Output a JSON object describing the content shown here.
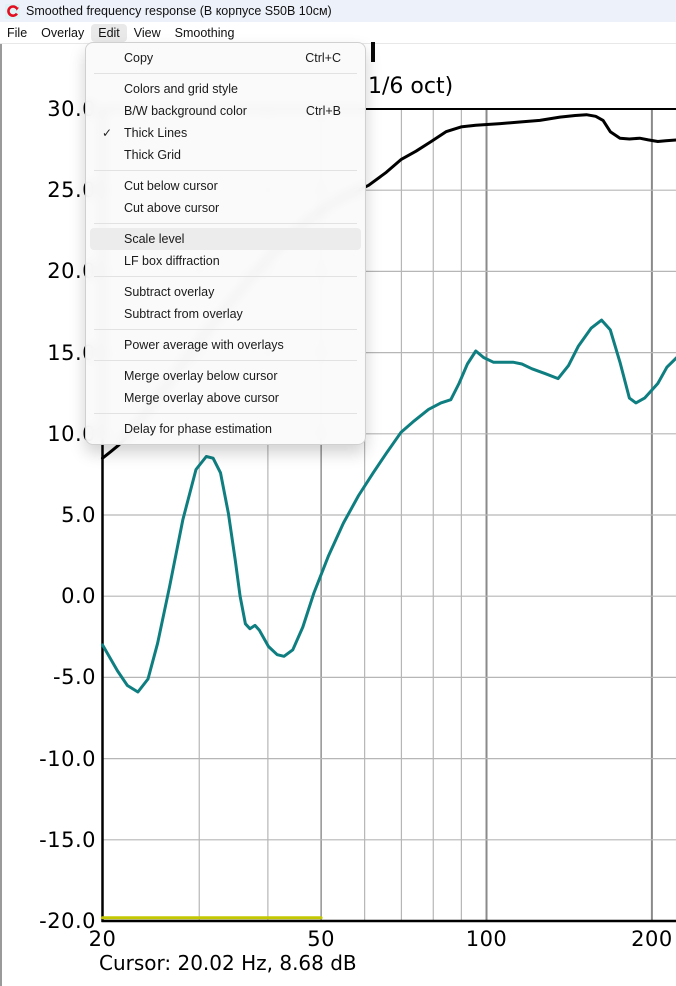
{
  "window": {
    "title": "Smoothed frequency response (В корпусе S50В 10см)",
    "icon": "arta-red-c-arrow"
  },
  "menu_bar": {
    "items": [
      "File",
      "Overlay",
      "Edit",
      "View",
      "Smoothing"
    ],
    "active_item": "Edit"
  },
  "edit_menu": {
    "groups": [
      [
        {
          "label": "Copy",
          "shortcut": "Ctrl+C"
        }
      ],
      [
        {
          "label": "Colors and grid style"
        },
        {
          "label": "B/W background color",
          "shortcut": "Ctrl+B"
        },
        {
          "label": "Thick Lines",
          "checked": true
        },
        {
          "label": "Thick Grid"
        }
      ],
      [
        {
          "label": "Cut below cursor"
        },
        {
          "label": "Cut above cursor"
        }
      ],
      [
        {
          "label": "Scale level",
          "highlighted": true
        },
        {
          "label": "LF box  diffraction"
        }
      ],
      [
        {
          "label": "Subtract overlay"
        },
        {
          "label": "Subtract from overlay"
        }
      ],
      [
        {
          "label": "Power average with overlays"
        }
      ],
      [
        {
          "label": "Merge overlay below cursor"
        },
        {
          "label": "Merge overlay above cursor"
        }
      ],
      [
        {
          "label": "Delay for phase estimation"
        }
      ]
    ],
    "checkmark_glyph": "✓"
  },
  "status": {
    "cursor_text": "Cursor: 20.02 Hz, 8.68 dB"
  },
  "colors": {
    "teal_curve": "#0e7e80",
    "black_curve": "#000000",
    "yellow_curve": "#c4c800",
    "grid_minor": "#b6b6b6",
    "grid_major": "#8a8a8a",
    "axis_border": "#000000",
    "titlebar_bg": "#edf1fa"
  },
  "chart_data": {
    "type": "line",
    "title_fragment": "1/6 oct)",
    "x_scale": "log",
    "x_unit": "Hz",
    "y_unit": "dB",
    "xlim": [
      20,
      222
    ],
    "ylim": [
      -20,
      30
    ],
    "grid": true,
    "cursor": {
      "freq_hz": 20.02,
      "level_db": 8.68
    },
    "x_ticks": [
      {
        "f": 20,
        "label": "20"
      },
      {
        "f": 50,
        "label": "50"
      },
      {
        "f": 100,
        "label": "100"
      },
      {
        "f": 200,
        "label": "200"
      }
    ],
    "x_grid_minor": [
      30,
      40,
      60,
      70,
      80,
      90
    ],
    "x_grid_major": [
      50,
      100,
      200
    ],
    "y_ticks": [
      {
        "db": 30,
        "label": "30.0"
      },
      {
        "db": 25,
        "label": "25.0"
      },
      {
        "db": 20,
        "label": "20.0"
      },
      {
        "db": 15,
        "label": "15.0"
      },
      {
        "db": 10,
        "label": "10.0"
      },
      {
        "db": 5,
        "label": "5.0"
      },
      {
        "db": 0,
        "label": "0.0"
      },
      {
        "db": -5,
        "label": "-5.0"
      },
      {
        "db": -10,
        "label": "-10.0"
      },
      {
        "db": -15,
        "label": "-15.0"
      },
      {
        "db": -20,
        "label": "-20.0"
      }
    ],
    "series": [
      {
        "name": "upper-response-black",
        "color": "#000000",
        "width": 3,
        "points": [
          [
            20,
            8.5
          ],
          [
            20.7,
            8.9
          ],
          [
            21.4,
            9.3
          ],
          [
            22,
            9.7
          ],
          [
            23.5,
            10.9
          ],
          [
            25,
            12.1
          ],
          [
            27,
            13.6
          ],
          [
            29,
            15.0
          ],
          [
            31.5,
            16.6
          ],
          [
            34,
            18.0
          ],
          [
            37,
            19.5
          ],
          [
            40,
            20.8
          ],
          [
            44,
            22.2
          ],
          [
            48,
            23.3
          ],
          [
            52,
            24.1
          ],
          [
            56,
            24.7
          ],
          [
            61,
            25.3
          ],
          [
            65.7,
            26.1
          ],
          [
            70,
            26.9
          ],
          [
            74.4,
            27.4
          ],
          [
            79.3,
            28.0
          ],
          [
            84.4,
            28.6
          ],
          [
            89.9,
            28.9
          ],
          [
            95.6,
            29.0
          ],
          [
            106,
            29.1
          ],
          [
            115,
            29.2
          ],
          [
            125,
            29.3
          ],
          [
            136,
            29.5
          ],
          [
            145,
            29.6
          ],
          [
            152,
            29.65
          ],
          [
            158,
            29.55
          ],
          [
            163,
            29.3
          ],
          [
            168,
            28.6
          ],
          [
            175,
            28.2
          ],
          [
            182,
            28.15
          ],
          [
            190,
            28.2
          ],
          [
            197,
            28.1
          ],
          [
            205,
            28.0
          ],
          [
            212,
            28.05
          ],
          [
            222,
            28.1
          ]
        ]
      },
      {
        "name": "lower-response-teal",
        "color": "#0e7e80",
        "width": 3,
        "points": [
          [
            20,
            -3.0
          ],
          [
            20.4,
            -3.5
          ],
          [
            21.3,
            -4.6
          ],
          [
            22.2,
            -5.5
          ],
          [
            23.2,
            -5.9
          ],
          [
            24.2,
            -5.1
          ],
          [
            25.2,
            -2.9
          ],
          [
            26.5,
            0.6
          ],
          [
            28,
            4.7
          ],
          [
            29.6,
            7.8
          ],
          [
            30.9,
            8.6
          ],
          [
            31.8,
            8.5
          ],
          [
            32.8,
            7.6
          ],
          [
            33.9,
            5.1
          ],
          [
            34.9,
            2.2
          ],
          [
            35.6,
            0.0
          ],
          [
            36.4,
            -1.7
          ],
          [
            37.1,
            -2.0
          ],
          [
            37.9,
            -1.8
          ],
          [
            38.6,
            -2.1
          ],
          [
            40.1,
            -3.1
          ],
          [
            41.6,
            -3.6
          ],
          [
            42.8,
            -3.7
          ],
          [
            44.4,
            -3.3
          ],
          [
            46.3,
            -1.9
          ],
          [
            48.5,
            0.2
          ],
          [
            51.6,
            2.5
          ],
          [
            54.9,
            4.5
          ],
          [
            58.5,
            6.2
          ],
          [
            62.2,
            7.6
          ],
          [
            65.7,
            8.8
          ],
          [
            69.9,
            10.1
          ],
          [
            73.9,
            10.8
          ],
          [
            78.4,
            11.5
          ],
          [
            82.6,
            11.9
          ],
          [
            86.1,
            12.1
          ],
          [
            89.1,
            13.1
          ],
          [
            92.3,
            14.3
          ],
          [
            95.6,
            15.1
          ],
          [
            98.8,
            14.7
          ],
          [
            103,
            14.4
          ],
          [
            108,
            14.4
          ],
          [
            112,
            14.4
          ],
          [
            116,
            14.3
          ],
          [
            121,
            14.0
          ],
          [
            128,
            13.7
          ],
          [
            135,
            13.4
          ],
          [
            141,
            14.2
          ],
          [
            147,
            15.4
          ],
          [
            155,
            16.5
          ],
          [
            162,
            17.0
          ],
          [
            168,
            16.4
          ],
          [
            175,
            14.4
          ],
          [
            182,
            12.2
          ],
          [
            187,
            11.9
          ],
          [
            194,
            12.2
          ],
          [
            205,
            13.1
          ],
          [
            213,
            14.1
          ],
          [
            222,
            14.7
          ]
        ]
      },
      {
        "name": "flat-overlay-yellow",
        "color": "#c4c800",
        "width": 3,
        "points": [
          [
            20,
            -19.8
          ],
          [
            50,
            -19.8
          ]
        ]
      }
    ]
  }
}
